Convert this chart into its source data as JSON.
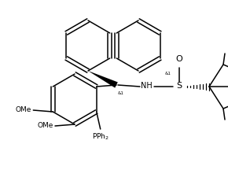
{
  "bg_color": "#ffffff",
  "line_color": "#000000",
  "lw": 1.1,
  "figsize": [
    2.9,
    2.16
  ],
  "dpi": 100,
  "xlim": [
    0,
    290
  ],
  "ylim": [
    0,
    216
  ]
}
